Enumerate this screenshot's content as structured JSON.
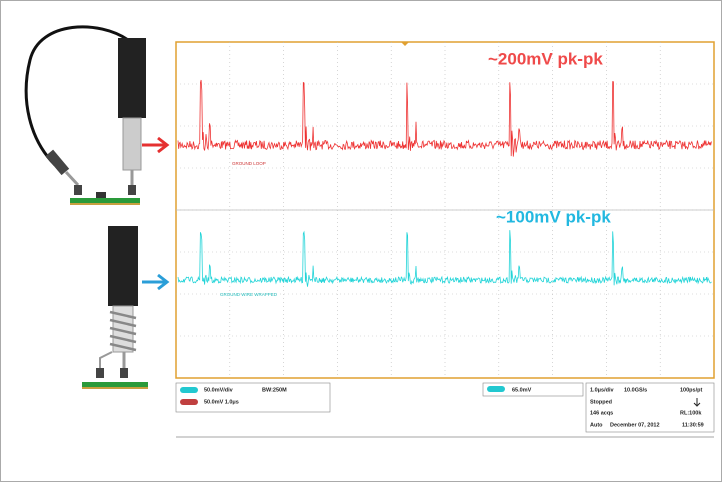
{
  "annotations": {
    "top": "~200mV pk-pk",
    "bottom": "~100mV pk-pk"
  },
  "traces": {
    "top_label": "GROUND LOOP",
    "bottom_label": "GROUND WIRE WRAPPED"
  },
  "status_bar": {
    "channel1": "50.0mV/div",
    "bandwidth": "BW:250M",
    "channel2": "50.0mV 1.0μs",
    "trigger": "65.0mV",
    "timebase": "1.0μs/div",
    "sample_rate": "10.0GS/s",
    "resolution": "100ps/pt",
    "state": "Stopped",
    "acquisitions": "146 acqs",
    "record_length": "RL:100k",
    "mode": "Auto",
    "date": "December 07, 2012",
    "time": "11:30:59"
  }
}
